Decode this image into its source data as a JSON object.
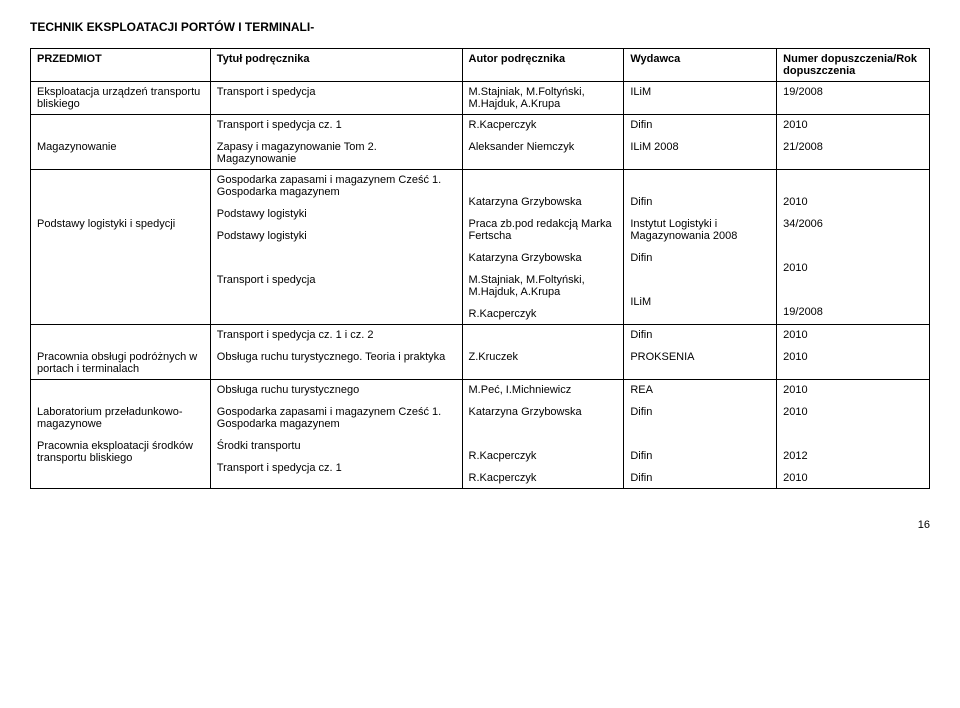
{
  "heading": "TECHNIK EKSPLOATACJI PORTÓW I TERMINALI-",
  "header": {
    "c0": "PRZEDMIOT",
    "c1": "Tytuł podręcznika",
    "c2": "Autor podręcznika",
    "c3": "Wydawca",
    "c4": "Numer dopuszczenia/Rok dopuszczenia"
  },
  "r1": {
    "c0": "Eksploatacja urządzeń transportu bliskiego",
    "c1": "Transport i spedycja",
    "c2": "M.Stajniak, M.Foltyński, M.Hajduk, A.Krupa",
    "c3": "ILiM",
    "c4": "19/2008"
  },
  "r2": {
    "c0": "Magazynowanie",
    "c1a": "Transport i spedycja cz. 1",
    "c1b": "Zapasy i magazynowanie Tom 2. Magazynowanie",
    "c2a": "R.Kacperczyk",
    "c2b": "Aleksander Niemczyk",
    "c3a": "Difin",
    "c3b": "ILiM 2008",
    "c4a": "2010",
    "c4b": "21/2008"
  },
  "r3": {
    "c0": "Podstawy logistyki i spedycji",
    "c1a": "Gospodarka zapasami i magazynem Cześć 1. Gospodarka magazynem",
    "c1b": "Podstawy logistyki",
    "c1c": "Podstawy logistyki",
    "c1d": "Transport i spedycja",
    "c2a": "Katarzyna Grzybowska",
    "c2b": "Praca zb.pod redakcją Marka Fertscha",
    "c2c": "Katarzyna Grzybowska",
    "c2d": "M.Stajniak, M.Foltyński, M.Hajduk, A.Krupa",
    "c2e": "R.Kacperczyk",
    "c3a": "Difin",
    "c3b": "Instytut Logistyki i Magazynowania 2008",
    "c3c": "Difin",
    "c3d": "ILiM",
    "c4a": "2010",
    "c4b": "34/2006",
    "c4c": "2010",
    "c4d": "19/2008"
  },
  "r4": {
    "c0": "Pracownia obsługi podróżnych w portach i terminalach",
    "c1a": "Transport i spedycja cz. 1 i cz. 2",
    "c1b": "Obsługa ruchu turystycznego. Teoria i praktyka",
    "c2b": "Z.Kruczek",
    "c3a": "Difin",
    "c3b": "PROKSENIA",
    "c4a": "2010",
    "c4b": "2010"
  },
  "r5": {
    "c0a": "Laboratorium przeładunkowo-magazynowe",
    "c0b": "Pracownia eksploatacji środków transportu bliskiego",
    "c1a": "Obsługa ruchu turystycznego",
    "c1b": "Gospodarka zapasami i magazynem Cześć 1. Gospodarka magazynem",
    "c1c": "Środki transportu",
    "c1d": "Transport i spedycja cz. 1",
    "c2a": "M.Peć, I.Michniewicz",
    "c2b": "Katarzyna Grzybowska",
    "c2c": "R.Kacperczyk",
    "c2d": "R.Kacperczyk",
    "c3a": "REA",
    "c3b": "Difin",
    "c3c": "Difin",
    "c3d": "Difin",
    "c4a": "2010",
    "c4b": "2010",
    "c4c": "2012",
    "c4d": "2010"
  },
  "page_number": "16"
}
